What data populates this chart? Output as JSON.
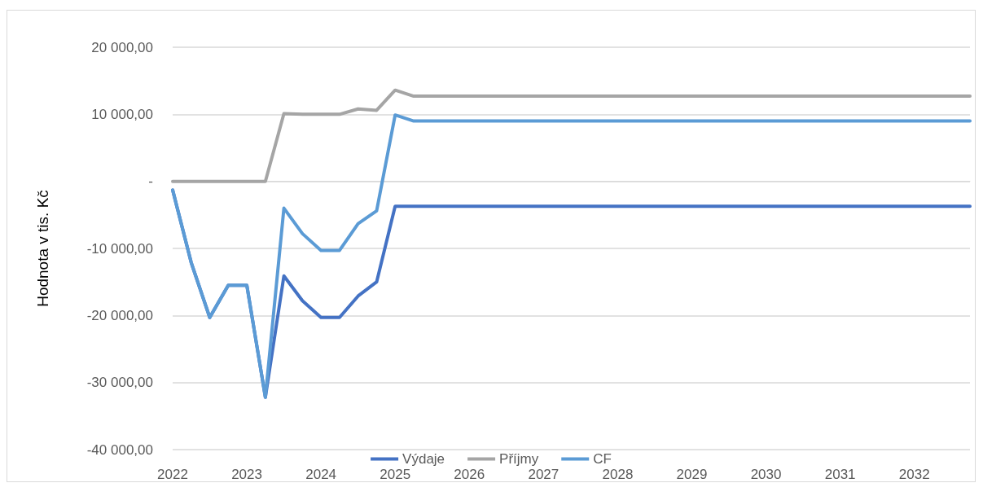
{
  "chart_data": {
    "type": "line",
    "ylabel": "Hodnota v tis. Kč",
    "categories": [
      "2022",
      null,
      null,
      null,
      "2023",
      null,
      null,
      null,
      "2024",
      null,
      null,
      null,
      "2025",
      null,
      null,
      null,
      "2026",
      null,
      null,
      null,
      "2027",
      null,
      null,
      null,
      "2028",
      null,
      null,
      null,
      "2029",
      null,
      null,
      null,
      "2030",
      null,
      null,
      null,
      "2031",
      null,
      null,
      null,
      "2032",
      null,
      null,
      null
    ],
    "series": [
      {
        "name": "Výdaje",
        "color": "#4472c4",
        "values": [
          -1300,
          -12100,
          -20300,
          -15500,
          -15500,
          -32200,
          -14100,
          -17800,
          -20300,
          -20300,
          -17100,
          -15000,
          -3700,
          -3700,
          -3700,
          -3700,
          -3700,
          -3700,
          -3700,
          -3700,
          -3700,
          -3700,
          -3700,
          -3700,
          -3700,
          -3700,
          -3700,
          -3700,
          -3700,
          -3700,
          -3700,
          -3700,
          -3700,
          -3700,
          -3700,
          -3700,
          -3700,
          -3700,
          -3700,
          -3700,
          -3700,
          -3700,
          -3700,
          -3700
        ]
      },
      {
        "name": "Příjmy",
        "color": "#a5a5a5",
        "values": [
          0,
          0,
          0,
          0,
          0,
          0,
          10100,
          10000,
          10000,
          10000,
          10800,
          10600,
          13600,
          12700,
          12700,
          12700,
          12700,
          12700,
          12700,
          12700,
          12700,
          12700,
          12700,
          12700,
          12700,
          12700,
          12700,
          12700,
          12700,
          12700,
          12700,
          12700,
          12700,
          12700,
          12700,
          12700,
          12700,
          12700,
          12700,
          12700,
          12700,
          12700,
          12700,
          12700
        ]
      },
      {
        "name": "CF",
        "color": "#5b9bd5",
        "values": [
          -1300,
          -12100,
          -20300,
          -15500,
          -15500,
          -32200,
          -4000,
          -7800,
          -10300,
          -10300,
          -6300,
          -4400,
          9900,
          9000,
          9000,
          9000,
          9000,
          9000,
          9000,
          9000,
          9000,
          9000,
          9000,
          9000,
          9000,
          9000,
          9000,
          9000,
          9000,
          9000,
          9000,
          9000,
          9000,
          9000,
          9000,
          9000,
          9000,
          9000,
          9000,
          9000,
          9000,
          9000,
          9000,
          9000
        ]
      }
    ],
    "ylim": [
      -40000,
      20000
    ],
    "yticks": [
      {
        "value": -40000,
        "label": "-40 000,00"
      },
      {
        "value": -30000,
        "label": "-30 000,00"
      },
      {
        "value": -20000,
        "label": "-20 000,00"
      },
      {
        "value": -10000,
        "label": "-10 000,00"
      },
      {
        "value": 0,
        "label": "-"
      },
      {
        "value": 10000,
        "label": "10 000,00"
      },
      {
        "value": 20000,
        "label": "20 000,00"
      }
    ],
    "grid": "y",
    "legend": "bottom",
    "marker": "none",
    "line_style": "solid"
  }
}
